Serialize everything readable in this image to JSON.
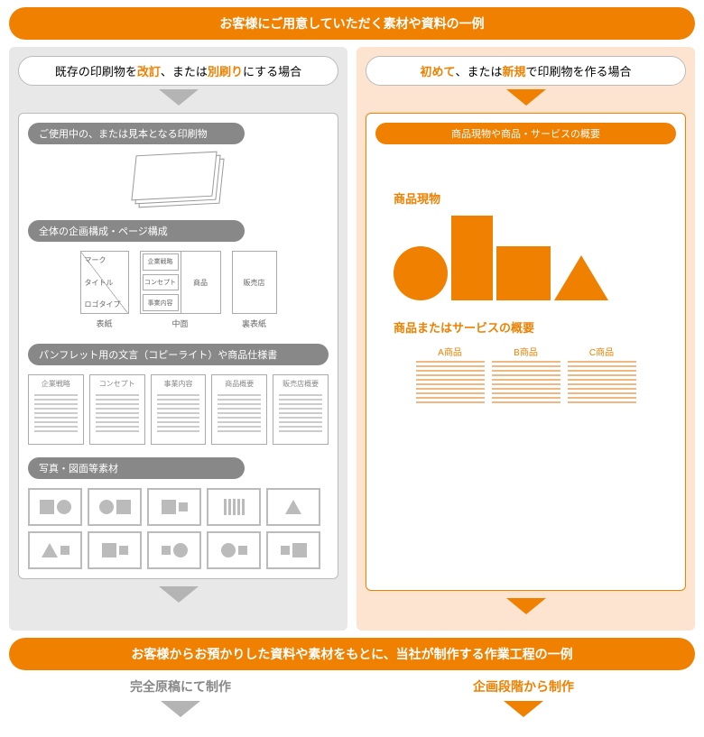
{
  "colors": {
    "orange": "#f08000",
    "gray": "#888",
    "light_gray": "#e8e8e8",
    "light_orange": "#fce4d0"
  },
  "banner_top": "お客様にご用意していただく素材や資料の一例",
  "left": {
    "case_pre": "既存の印刷物を",
    "case_hl1": "改訂",
    "case_mid": "、または",
    "case_hl2": "別刷り",
    "case_post": "にする場合",
    "sec1": "ご使用中の、または見本となる印刷物",
    "sec2": "全体の企画構成・ページ構成",
    "cover": {
      "top": "マーク",
      "mid": "タイトル",
      "bot": "ロゴタイプ",
      "label": "表紙"
    },
    "mid": {
      "a": "企業戦略",
      "b": "コンセプト",
      "c": "事業内容",
      "d": "商品",
      "label": "中面"
    },
    "back": {
      "text": "販売店",
      "label": "裏表紙"
    },
    "sec3": "パンフレット用の文言（コピーライト）や商品仕様書",
    "docs": [
      "企業戦略",
      "コンセプト",
      "事業内容",
      "商品概要",
      "販売店概要"
    ],
    "sec4": "写真・図面等素材"
  },
  "right": {
    "case_hl1": "初めて",
    "case_mid": "、または",
    "case_hl2": "新規",
    "case_post": "で印刷物を作る場合",
    "sec1": "商品現物や商品・サービスの概要",
    "sub1": "商品現物",
    "sub2": "商品またはサービスの概要",
    "svcs": [
      "A商品",
      "B商品",
      "C商品"
    ]
  },
  "banner_bottom": "お客様からお預かりした資料や素材をもとに、当社が制作する作業工程の一例",
  "footer": {
    "left": "完全原稿にて制作",
    "right": "企画段階から制作"
  }
}
